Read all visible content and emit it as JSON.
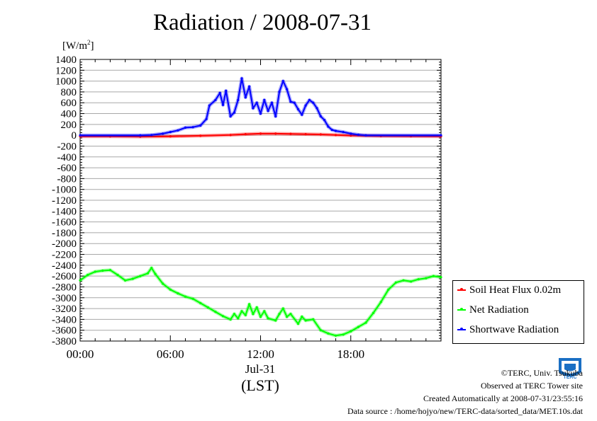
{
  "title": "Radiation / 2008-07-31",
  "unit_label": "[W/m²]",
  "footer": {
    "copyright": "©TERC, Univ. Tsukuba",
    "observed": "Observed at TERC Tower site",
    "created": "Created Automatically at 2008-07-31/23:55:16",
    "source": "Data source : /home/hojyo/new/TERC-data/sorted_data/MET.10s.dat"
  },
  "logo_text": "TERC",
  "chart_data": {
    "type": "line",
    "title": "Radiation / 2008-07-31",
    "ylabel": "[W/m²]",
    "xlabel": "(LST)",
    "x_date_label": "Jul-31",
    "xlim": [
      0,
      24
    ],
    "ylim": [
      -3800,
      1400
    ],
    "xticks": [
      {
        "v": 0,
        "label": "00:00"
      },
      {
        "v": 6,
        "label": "06:00"
      },
      {
        "v": 12,
        "label": "12:00"
      },
      {
        "v": 18,
        "label": "18:00"
      }
    ],
    "yticks": [
      1400,
      1200,
      1000,
      800,
      600,
      400,
      200,
      0,
      -200,
      -400,
      -600,
      -800,
      -1000,
      -1200,
      -1400,
      -1600,
      -1800,
      -2000,
      -2200,
      -2400,
      -2600,
      -2800,
      -3000,
      -3200,
      -3400,
      -3600,
      -3800
    ],
    "grid": true,
    "legend_position": "right",
    "series": [
      {
        "name": "Soil Heat Flux 0.02m",
        "color": "#ff0000",
        "points": [
          [
            0,
            -20
          ],
          [
            2,
            -22
          ],
          [
            4,
            -25
          ],
          [
            6,
            -20
          ],
          [
            8,
            -10
          ],
          [
            10,
            5
          ],
          [
            11,
            20
          ],
          [
            12,
            30
          ],
          [
            13,
            30
          ],
          [
            14,
            25
          ],
          [
            15,
            20
          ],
          [
            16,
            15
          ],
          [
            17,
            5
          ],
          [
            18,
            -5
          ],
          [
            20,
            -15
          ],
          [
            22,
            -18
          ],
          [
            24,
            -20
          ]
        ]
      },
      {
        "name": "Net Radiation",
        "color": "#00ff00",
        "points": [
          [
            0,
            -2680
          ],
          [
            0.5,
            -2580
          ],
          [
            1,
            -2520
          ],
          [
            1.5,
            -2500
          ],
          [
            2,
            -2490
          ],
          [
            2.5,
            -2580
          ],
          [
            3,
            -2680
          ],
          [
            3.5,
            -2650
          ],
          [
            4,
            -2600
          ],
          [
            4.5,
            -2550
          ],
          [
            4.75,
            -2450
          ],
          [
            5,
            -2560
          ],
          [
            5.5,
            -2740
          ],
          [
            6,
            -2850
          ],
          [
            6.5,
            -2920
          ],
          [
            7,
            -2980
          ],
          [
            7.5,
            -3020
          ],
          [
            8,
            -3100
          ],
          [
            8.5,
            -3180
          ],
          [
            9,
            -3260
          ],
          [
            9.5,
            -3340
          ],
          [
            10,
            -3400
          ],
          [
            10.25,
            -3300
          ],
          [
            10.5,
            -3380
          ],
          [
            10.75,
            -3250
          ],
          [
            11,
            -3320
          ],
          [
            11.25,
            -3120
          ],
          [
            11.5,
            -3300
          ],
          [
            11.75,
            -3180
          ],
          [
            12,
            -3350
          ],
          [
            12.25,
            -3250
          ],
          [
            12.5,
            -3380
          ],
          [
            13,
            -3420
          ],
          [
            13.25,
            -3300
          ],
          [
            13.5,
            -3200
          ],
          [
            13.75,
            -3350
          ],
          [
            14,
            -3300
          ],
          [
            14.5,
            -3480
          ],
          [
            14.75,
            -3350
          ],
          [
            15,
            -3420
          ],
          [
            15.5,
            -3400
          ],
          [
            16,
            -3600
          ],
          [
            16.5,
            -3660
          ],
          [
            17,
            -3700
          ],
          [
            17.5,
            -3680
          ],
          [
            18,
            -3620
          ],
          [
            18.5,
            -3540
          ],
          [
            19,
            -3460
          ],
          [
            19.5,
            -3280
          ],
          [
            20,
            -3080
          ],
          [
            20.5,
            -2850
          ],
          [
            21,
            -2720
          ],
          [
            21.5,
            -2680
          ],
          [
            22,
            -2700
          ],
          [
            22.5,
            -2660
          ],
          [
            23,
            -2640
          ],
          [
            23.5,
            -2600
          ],
          [
            24,
            -2620
          ]
        ]
      },
      {
        "name": "Shortwave Radiation",
        "color": "#0000ff",
        "points": [
          [
            0,
            0
          ],
          [
            4,
            0
          ],
          [
            4.75,
            5
          ],
          [
            5.5,
            30
          ],
          [
            6,
            60
          ],
          [
            6.5,
            90
          ],
          [
            7,
            140
          ],
          [
            7.5,
            150
          ],
          [
            8,
            180
          ],
          [
            8.4,
            300
          ],
          [
            8.6,
            550
          ],
          [
            9,
            650
          ],
          [
            9.3,
            780
          ],
          [
            9.5,
            560
          ],
          [
            9.7,
            820
          ],
          [
            10,
            350
          ],
          [
            10.25,
            420
          ],
          [
            10.5,
            650
          ],
          [
            10.75,
            1050
          ],
          [
            11,
            700
          ],
          [
            11.25,
            900
          ],
          [
            11.5,
            500
          ],
          [
            11.75,
            600
          ],
          [
            12,
            400
          ],
          [
            12.25,
            650
          ],
          [
            12.5,
            450
          ],
          [
            12.75,
            600
          ],
          [
            13,
            350
          ],
          [
            13.25,
            800
          ],
          [
            13.5,
            1000
          ],
          [
            13.75,
            850
          ],
          [
            14,
            620
          ],
          [
            14.25,
            600
          ],
          [
            14.5,
            480
          ],
          [
            14.75,
            380
          ],
          [
            15,
            550
          ],
          [
            15.25,
            650
          ],
          [
            15.5,
            600
          ],
          [
            15.75,
            500
          ],
          [
            16,
            350
          ],
          [
            16.25,
            280
          ],
          [
            16.5,
            160
          ],
          [
            16.75,
            100
          ],
          [
            17,
            80
          ],
          [
            17.5,
            60
          ],
          [
            18,
            30
          ],
          [
            18.5,
            10
          ],
          [
            19,
            0
          ],
          [
            24,
            0
          ]
        ]
      }
    ]
  }
}
